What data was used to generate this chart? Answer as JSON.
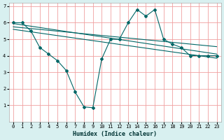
{
  "bg_color": "#d8f0f0",
  "plot_bg_color": "#ffffff",
  "grid_color": "#f0a0a0",
  "line_color": "#006666",
  "xlabel": "Humidex (Indice chaleur)",
  "xlim": [
    -0.5,
    23.5
  ],
  "ylim": [
    0,
    7.2
  ],
  "yticks": [
    1,
    2,
    3,
    4,
    5,
    6,
    7
  ],
  "xticks": [
    0,
    1,
    2,
    3,
    4,
    5,
    6,
    7,
    8,
    9,
    10,
    11,
    12,
    13,
    14,
    15,
    16,
    17,
    18,
    19,
    20,
    21,
    22,
    23
  ],
  "line1_x": [
    0,
    1,
    2,
    3,
    4,
    5,
    6,
    7,
    8,
    9,
    10,
    11,
    12,
    13,
    14,
    15,
    16,
    17,
    18,
    19,
    20,
    21,
    22,
    23
  ],
  "line1_y": [
    6.0,
    6.0,
    5.5,
    4.5,
    4.1,
    3.7,
    3.1,
    1.8,
    0.9,
    0.85,
    3.8,
    5.0,
    5.0,
    6.0,
    6.8,
    6.4,
    6.8,
    5.0,
    4.7,
    4.5,
    4.0,
    4.0,
    4.0,
    4.0
  ],
  "line2_x": [
    0,
    23
  ],
  "line2_y": [
    5.95,
    4.1
  ],
  "line3_x": [
    0,
    23
  ],
  "line3_y": [
    5.75,
    4.55
  ],
  "line4_x": [
    0,
    23
  ],
  "line4_y": [
    5.6,
    3.85
  ],
  "xlabel_fontsize": 6.0,
  "tick_fontsize": 5.0
}
